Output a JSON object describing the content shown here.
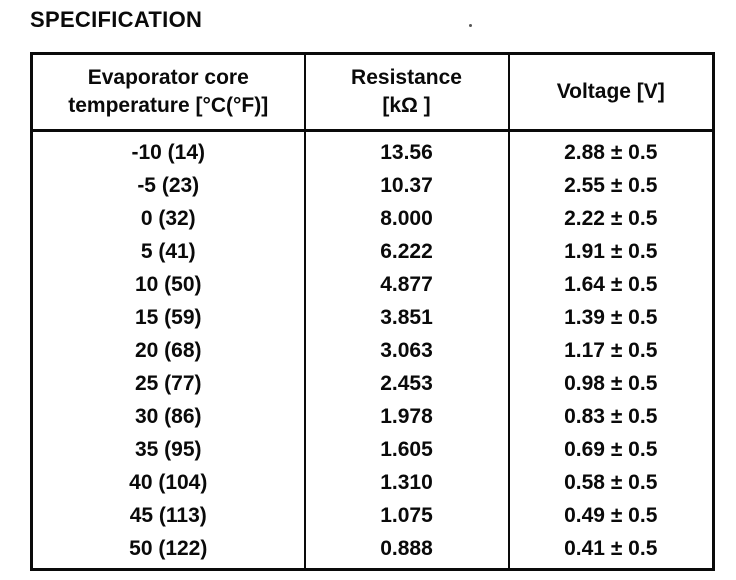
{
  "page": {
    "title": "SPECIFICATION"
  },
  "table": {
    "columns": [
      {
        "line1": "Evaporator core",
        "line2": "temperature [°C(°F)]"
      },
      {
        "line1": "Resistance",
        "line2": "[kΩ ]"
      },
      {
        "line1": "Voltage [V]",
        "line2": ""
      }
    ],
    "rows": [
      {
        "temperature": "-10 (14)",
        "resistance": "13.56",
        "voltage": "2.88 ± 0.5"
      },
      {
        "temperature": "-5 (23)",
        "resistance": "10.37",
        "voltage": "2.55 ± 0.5"
      },
      {
        "temperature": "0 (32)",
        "resistance": "8.000",
        "voltage": "2.22 ± 0.5"
      },
      {
        "temperature": "5 (41)",
        "resistance": "6.222",
        "voltage": "1.91 ± 0.5"
      },
      {
        "temperature": "10 (50)",
        "resistance": "4.877",
        "voltage": "1.64 ± 0.5"
      },
      {
        "temperature": "15 (59)",
        "resistance": "3.851",
        "voltage": "1.39 ± 0.5"
      },
      {
        "temperature": "20 (68)",
        "resistance": "3.063",
        "voltage": "1.17 ± 0.5"
      },
      {
        "temperature": "25 (77)",
        "resistance": "2.453",
        "voltage": "0.98 ± 0.5"
      },
      {
        "temperature": "30 (86)",
        "resistance": "1.978",
        "voltage": "0.83 ± 0.5"
      },
      {
        "temperature": "35 (95)",
        "resistance": "1.605",
        "voltage": "0.69 ± 0.5"
      },
      {
        "temperature": "40 (104)",
        "resistance": "1.310",
        "voltage": "0.58 ± 0.5"
      },
      {
        "temperature": "45 (113)",
        "resistance": "1.075",
        "voltage": "0.49 ± 0.5"
      },
      {
        "temperature": "50 (122)",
        "resistance": "0.888",
        "voltage": "0.41 ± 0.5"
      }
    ]
  }
}
